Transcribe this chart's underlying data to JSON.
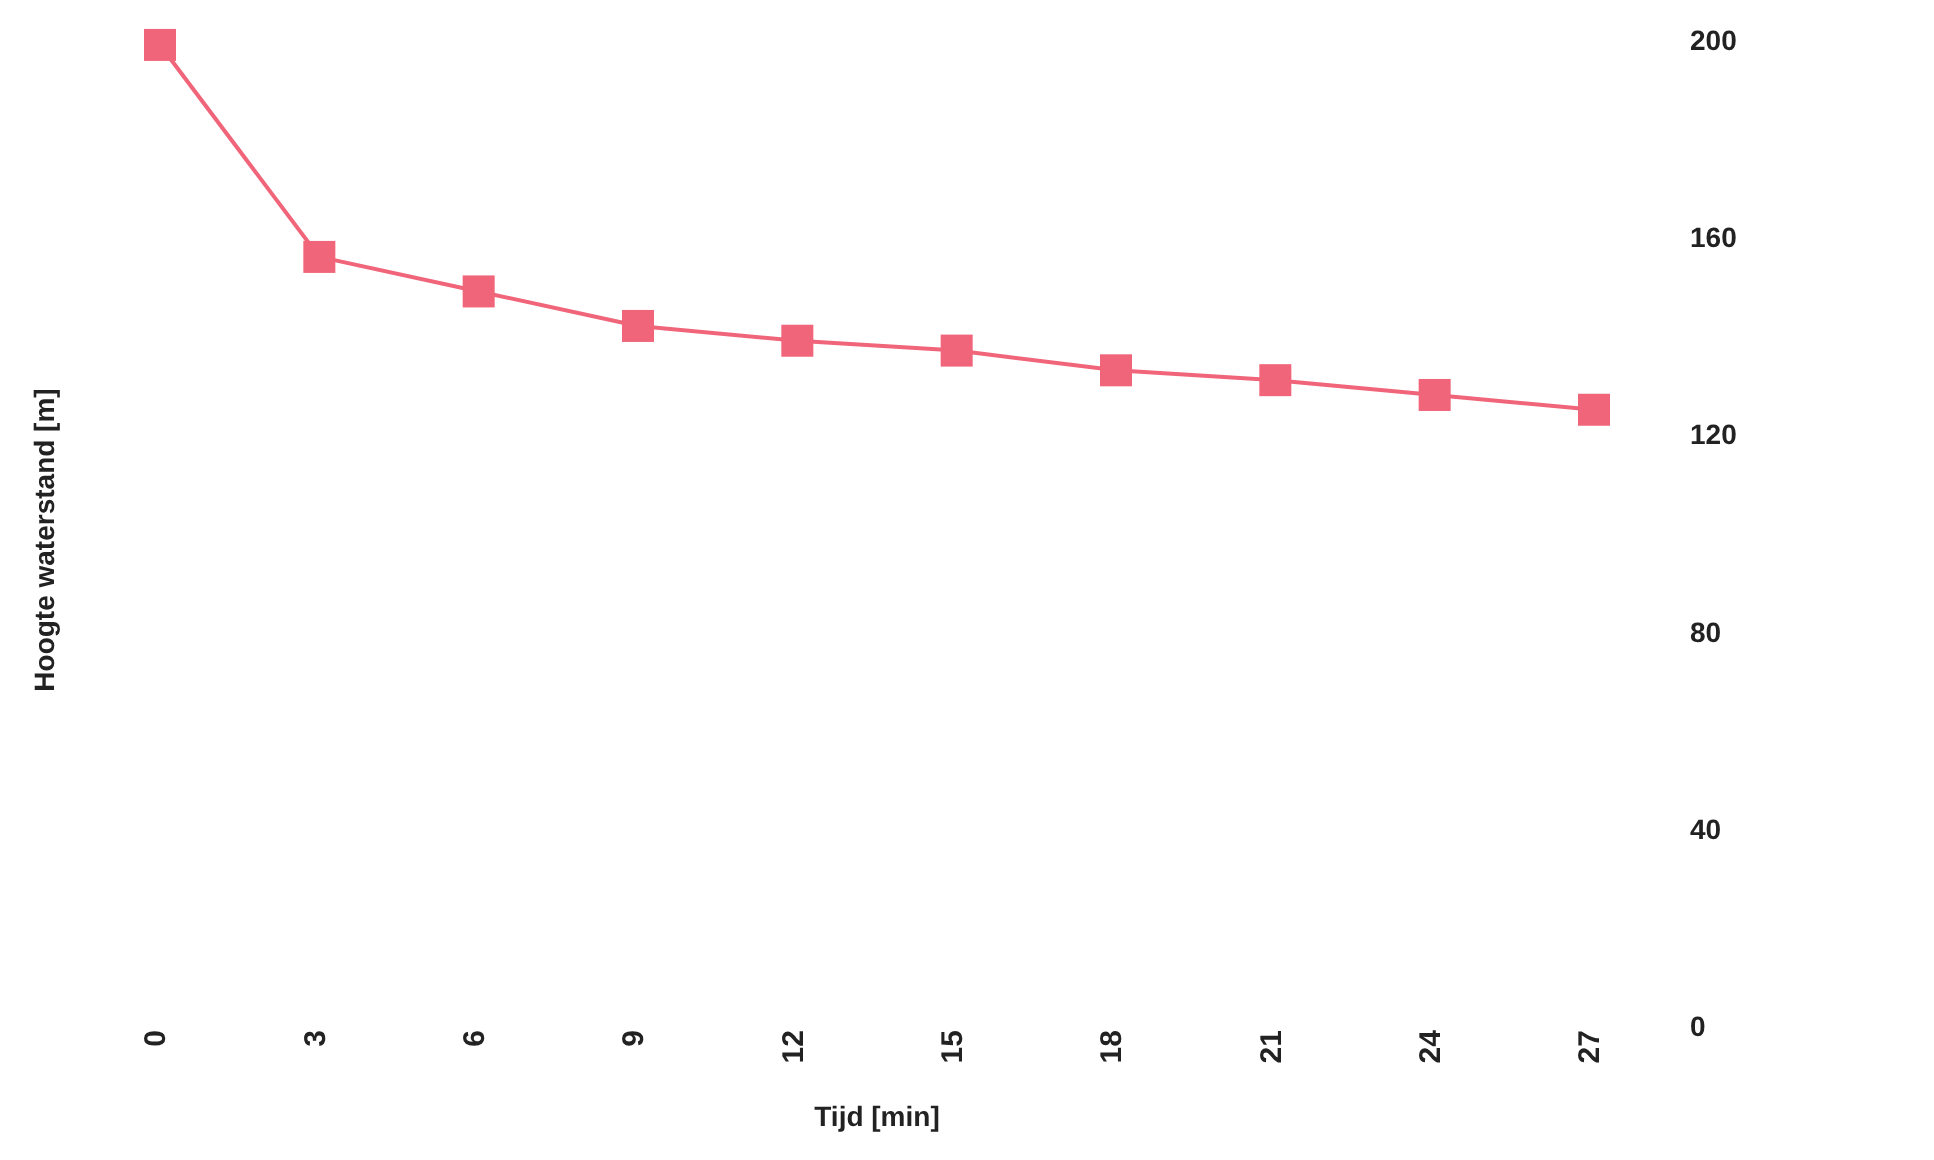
{
  "chart_data": {
    "type": "line",
    "xlabel": "Tijd [min]",
    "ylabel": "Hoogte waterstand [m]",
    "categories": [
      "0",
      "3",
      "6",
      "9",
      "12",
      "15",
      "18",
      "21",
      "24",
      "27"
    ],
    "series": [
      {
        "color": "#f0657a",
        "values": [
          199,
          156,
          149,
          142,
          139,
          137,
          133,
          131,
          128,
          125
        ]
      }
    ],
    "ylim": [
      0,
      200
    ],
    "yticks": [
      0,
      40,
      80,
      120,
      160,
      200
    ],
    "marker": "square",
    "line_style": "solid",
    "grid": false,
    "legend": false
  }
}
